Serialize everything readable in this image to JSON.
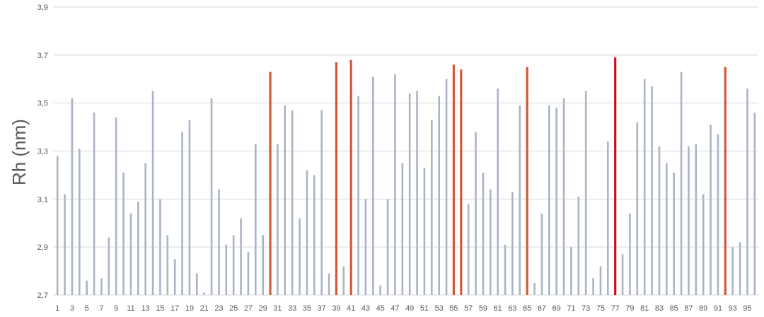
{
  "chart_data": {
    "type": "bar",
    "title": "",
    "xlabel": "",
    "ylabel": "Rh (nm)",
    "ylim": [
      2.7,
      3.9
    ],
    "yticks": [
      "2,7",
      "2,9",
      "3,1",
      "3,3",
      "3,5",
      "3,7",
      "3,9"
    ],
    "grid": true,
    "categories": [
      1,
      2,
      3,
      4,
      5,
      6,
      7,
      8,
      9,
      10,
      11,
      12,
      13,
      14,
      15,
      16,
      17,
      18,
      19,
      20,
      21,
      22,
      23,
      24,
      25,
      26,
      27,
      28,
      29,
      30,
      31,
      32,
      33,
      34,
      35,
      36,
      37,
      38,
      39,
      40,
      41,
      42,
      43,
      44,
      45,
      46,
      47,
      48,
      49,
      50,
      51,
      52,
      53,
      54,
      55,
      56,
      57,
      58,
      59,
      60,
      61,
      62,
      63,
      64,
      65,
      66,
      67,
      68,
      69,
      70,
      71,
      72,
      73,
      74,
      75,
      76,
      77,
      78,
      79,
      80,
      81,
      82,
      83,
      84,
      85,
      86,
      87,
      88,
      89,
      90,
      91,
      92,
      93,
      94,
      95,
      96
    ],
    "x_tick_labels": [
      "1",
      "3",
      "5",
      "7",
      "9",
      "11",
      "13",
      "15",
      "17",
      "19",
      "21",
      "23",
      "25",
      "27",
      "29",
      "31",
      "33",
      "35",
      "37",
      "39",
      "41",
      "43",
      "45",
      "47",
      "49",
      "51",
      "53",
      "55",
      "57",
      "59",
      "61",
      "63",
      "65",
      "67",
      "69",
      "71",
      "73",
      "75",
      "77",
      "79",
      "81",
      "83",
      "85",
      "87",
      "89",
      "91",
      "93",
      "95"
    ],
    "values": [
      3.28,
      3.12,
      3.52,
      3.31,
      2.76,
      3.46,
      2.77,
      2.94,
      3.44,
      3.21,
      3.04,
      3.09,
      3.25,
      3.55,
      3.1,
      2.95,
      2.85,
      3.38,
      3.43,
      2.79,
      2.71,
      3.52,
      3.14,
      2.91,
      2.95,
      3.02,
      2.88,
      3.33,
      2.95,
      3.63,
      3.33,
      3.49,
      3.47,
      3.02,
      3.22,
      3.2,
      3.47,
      2.79,
      3.67,
      2.82,
      3.68,
      3.53,
      3.1,
      3.61,
      2.74,
      3.1,
      3.62,
      3.25,
      3.54,
      3.55,
      3.23,
      3.43,
      3.53,
      3.6,
      3.66,
      3.64,
      3.08,
      3.38,
      3.21,
      3.14,
      3.56,
      2.91,
      3.13,
      3.49,
      3.65,
      2.75,
      3.04,
      3.49,
      3.48,
      3.52,
      2.9,
      3.11,
      3.55,
      2.77,
      2.82,
      3.34,
      3.69,
      2.87,
      3.04,
      3.42,
      3.6,
      3.57,
      3.32,
      3.25,
      3.21,
      3.63,
      3.32,
      3.33,
      3.12,
      3.41,
      3.37,
      3.65,
      2.9,
      2.92,
      3.56,
      3.46
    ],
    "highlighted": [
      30,
      39,
      41,
      55,
      56,
      65,
      77,
      92
    ],
    "strongest": [
      77
    ],
    "colors": {
      "default": "#aab4c4",
      "highlight": "#d2583a",
      "strongest": "#c8101c",
      "grid": "#d9d9d9",
      "text": "#595959"
    }
  }
}
